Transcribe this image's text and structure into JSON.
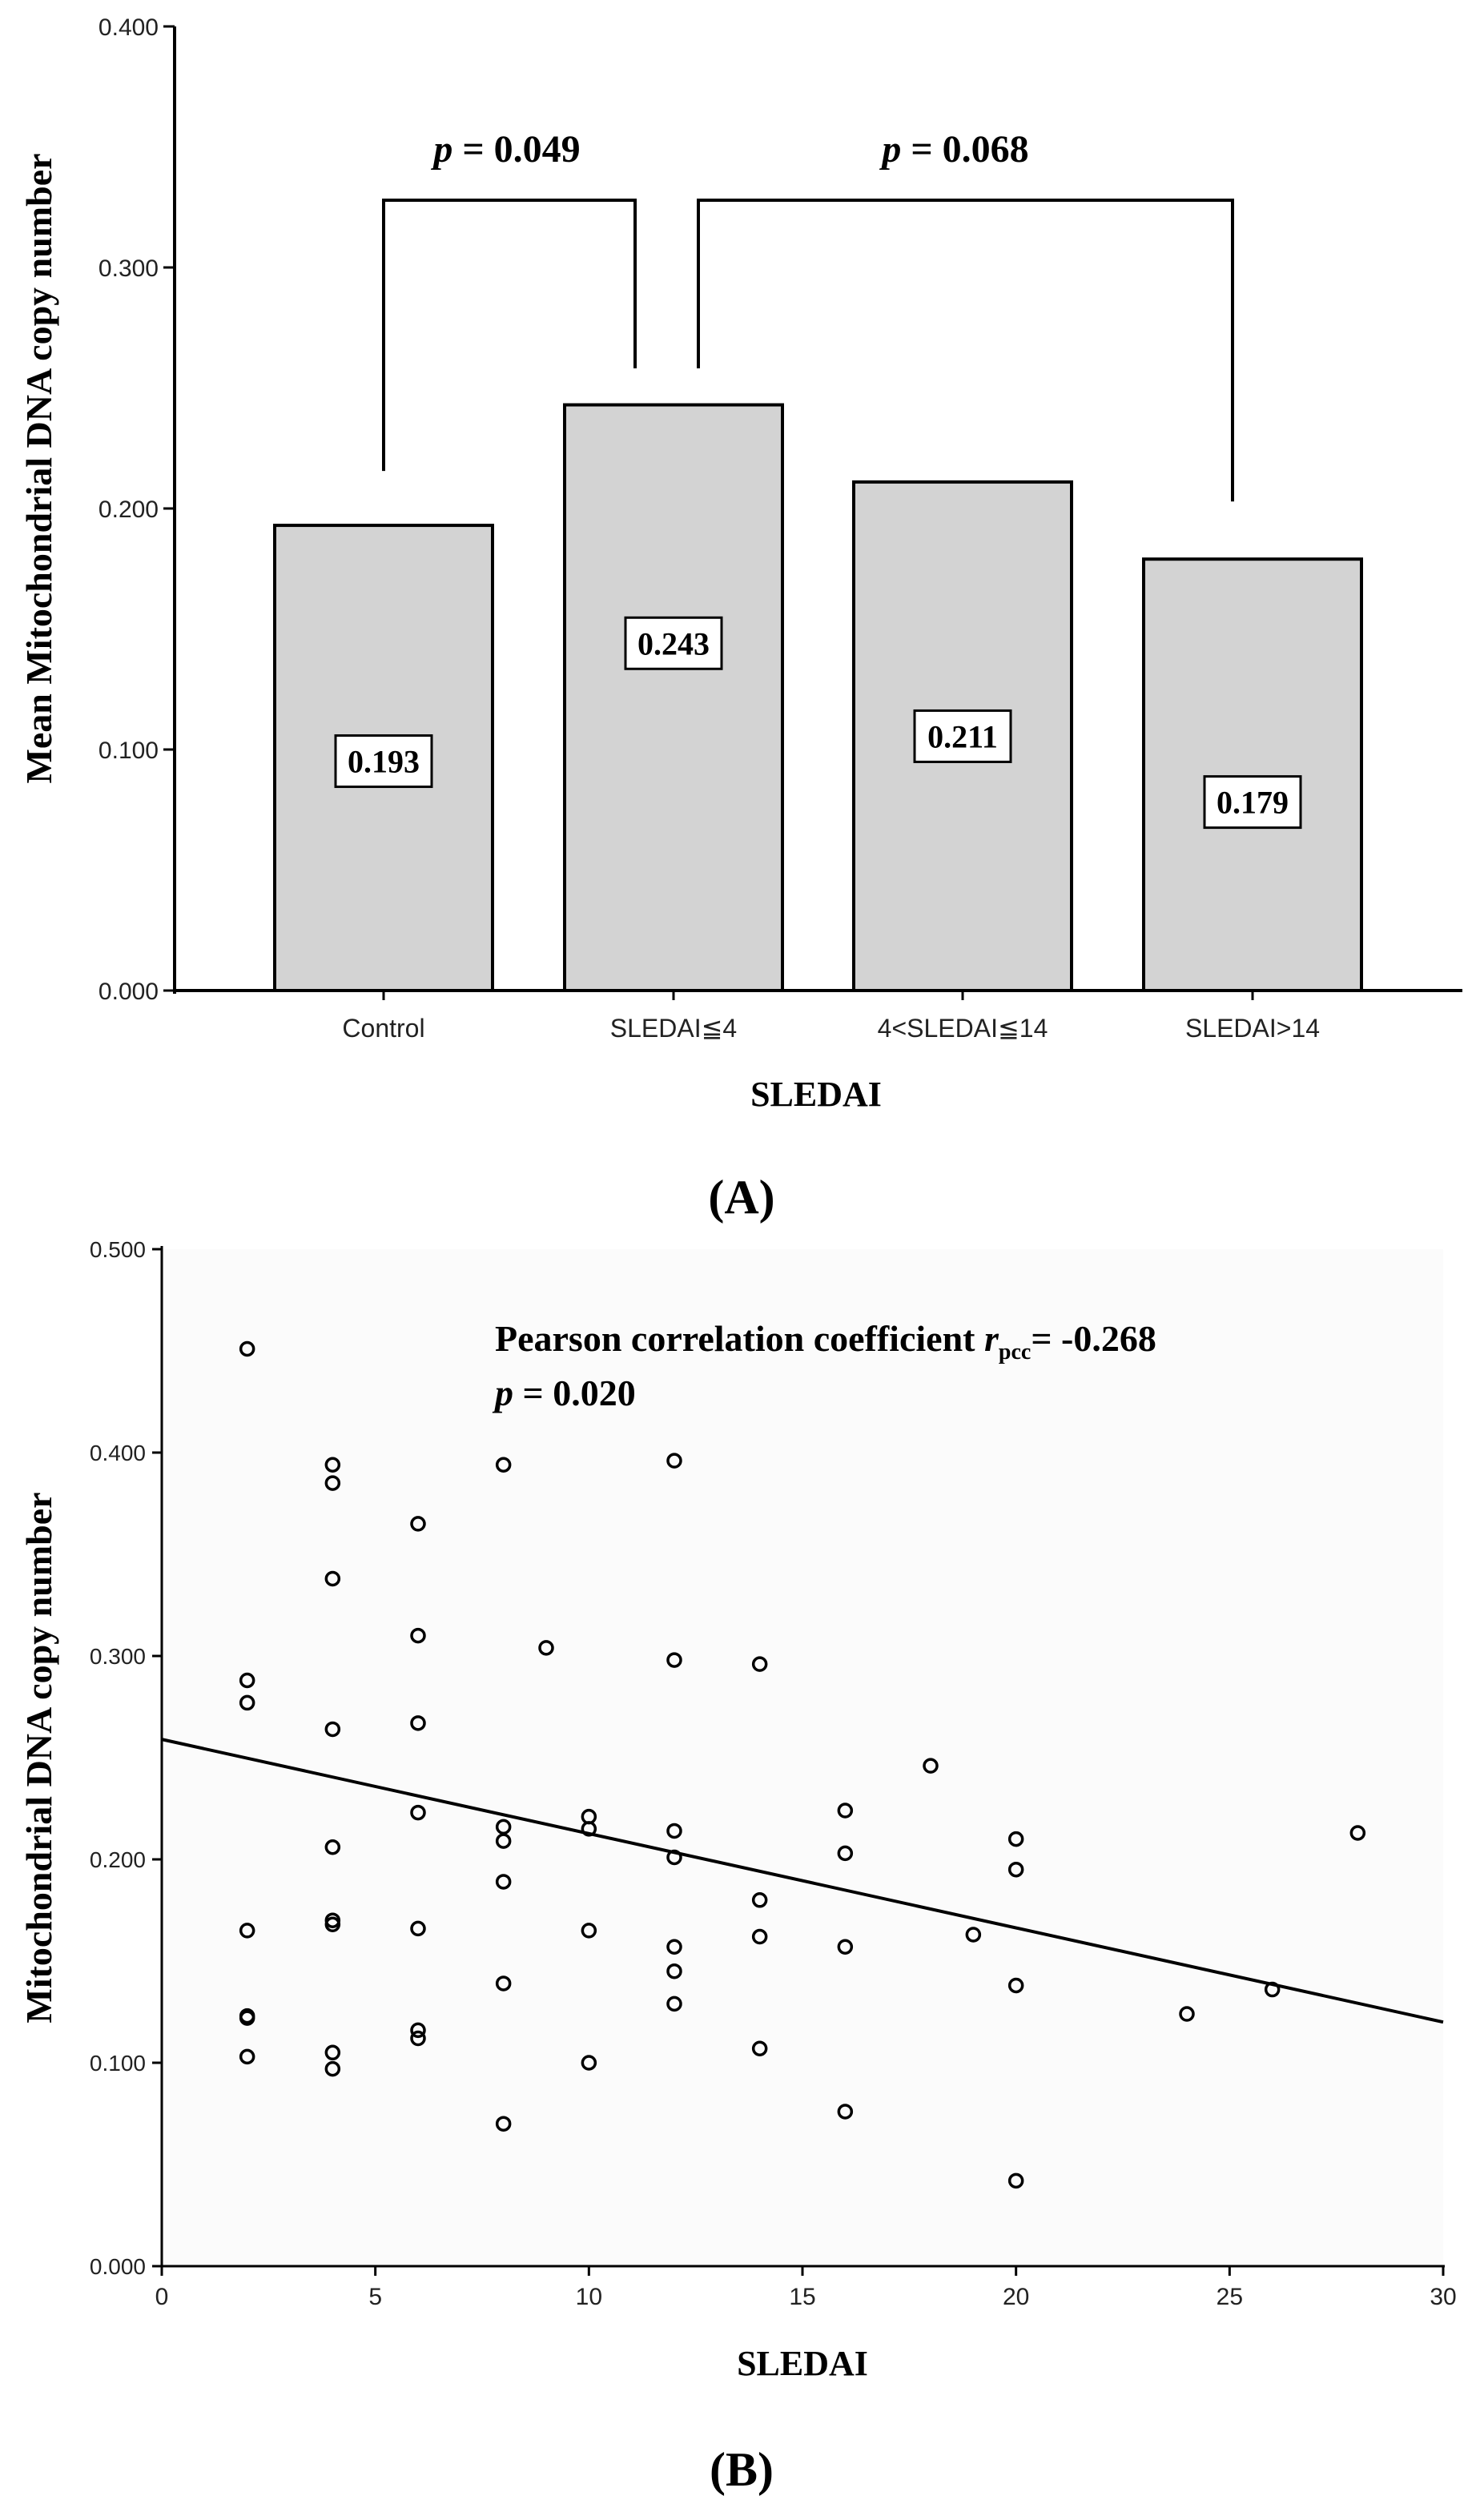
{
  "colors": {
    "bar_fill": "#d3d3d3",
    "stroke": "#000000",
    "plot_bg_b": "#fbfbfb"
  },
  "chart_data": [
    {
      "type": "bar",
      "panel_label": "(A)",
      "title": "",
      "categories": [
        "Control",
        "SLEDAI≦4",
        "4<SLEDAI≦14",
        "SLEDAI>14"
      ],
      "values": [
        0.193,
        0.243,
        0.211,
        0.179
      ],
      "value_labels": [
        "0.193",
        "0.243",
        "0.211",
        "0.179"
      ],
      "xlabel": "SLEDAI",
      "ylabel": "Mean Mitochondrial DNA copy number",
      "ylim": [
        0,
        0.4
      ],
      "yticks": [
        "0.000",
        "0.100",
        "0.200",
        "0.300",
        "0.400"
      ],
      "annotations": [
        {
          "text_italic": "p",
          "text_rest": " = 0.049",
          "from_category": 0,
          "to_category": 1
        },
        {
          "text_italic": "p",
          "text_rest": " = 0.068",
          "from_category": 1,
          "to_category": 3
        }
      ]
    },
    {
      "type": "scatter",
      "panel_label": "(B)",
      "title": "",
      "xlabel": "SLEDAI",
      "ylabel": "Mitochondrial DNA copy number",
      "xlim": [
        0,
        30
      ],
      "ylim": [
        0,
        0.5
      ],
      "xticks": [
        "0",
        "5",
        "10",
        "15",
        "20",
        "25",
        "30"
      ],
      "yticks": [
        "0.000",
        "0.100",
        "0.200",
        "0.300",
        "0.400",
        "0.500"
      ],
      "annotation_line1_prefix": "Pearson correlation coefficient ",
      "annotation_r": "r",
      "annotation_sub": "pcc",
      "annotation_line1_suffix": "= -0.268",
      "annotation_line2_italic": "p",
      "annotation_line2_rest": " = 0.020",
      "fit_line": {
        "x": [
          0,
          30
        ],
        "y": [
          0.259,
          0.12
        ]
      },
      "points": [
        {
          "x": 2,
          "y": 0.451
        },
        {
          "x": 2,
          "y": 0.288
        },
        {
          "x": 2,
          "y": 0.277
        },
        {
          "x": 2,
          "y": 0.165
        },
        {
          "x": 2,
          "y": 0.123
        },
        {
          "x": 2,
          "y": 0.122
        },
        {
          "x": 2,
          "y": 0.103
        },
        {
          "x": 4,
          "y": 0.394
        },
        {
          "x": 4,
          "y": 0.385
        },
        {
          "x": 4,
          "y": 0.338
        },
        {
          "x": 4,
          "y": 0.264
        },
        {
          "x": 4,
          "y": 0.206
        },
        {
          "x": 4,
          "y": 0.17
        },
        {
          "x": 4,
          "y": 0.168
        },
        {
          "x": 4,
          "y": 0.105
        },
        {
          "x": 4,
          "y": 0.097
        },
        {
          "x": 6,
          "y": 0.365
        },
        {
          "x": 6,
          "y": 0.31
        },
        {
          "x": 6,
          "y": 0.267
        },
        {
          "x": 6,
          "y": 0.223
        },
        {
          "x": 6,
          "y": 0.166
        },
        {
          "x": 6,
          "y": 0.116
        },
        {
          "x": 6,
          "y": 0.112
        },
        {
          "x": 8,
          "y": 0.394
        },
        {
          "x": 8,
          "y": 0.216
        },
        {
          "x": 8,
          "y": 0.209
        },
        {
          "x": 8,
          "y": 0.189
        },
        {
          "x": 8,
          "y": 0.139
        },
        {
          "x": 8,
          "y": 0.07
        },
        {
          "x": 9,
          "y": 0.304
        },
        {
          "x": 10,
          "y": 0.221
        },
        {
          "x": 10,
          "y": 0.215
        },
        {
          "x": 10,
          "y": 0.165
        },
        {
          "x": 10,
          "y": 0.1
        },
        {
          "x": 12,
          "y": 0.396
        },
        {
          "x": 12,
          "y": 0.298
        },
        {
          "x": 12,
          "y": 0.214
        },
        {
          "x": 12,
          "y": 0.201
        },
        {
          "x": 12,
          "y": 0.157
        },
        {
          "x": 12,
          "y": 0.145
        },
        {
          "x": 12,
          "y": 0.129
        },
        {
          "x": 14,
          "y": 0.296
        },
        {
          "x": 14,
          "y": 0.18
        },
        {
          "x": 14,
          "y": 0.162
        },
        {
          "x": 14,
          "y": 0.107
        },
        {
          "x": 16,
          "y": 0.224
        },
        {
          "x": 16,
          "y": 0.203
        },
        {
          "x": 16,
          "y": 0.157
        },
        {
          "x": 16,
          "y": 0.076
        },
        {
          "x": 18,
          "y": 0.246
        },
        {
          "x": 19,
          "y": 0.163
        },
        {
          "x": 20,
          "y": 0.21
        },
        {
          "x": 20,
          "y": 0.195
        },
        {
          "x": 20,
          "y": 0.138
        },
        {
          "x": 20,
          "y": 0.042
        },
        {
          "x": 24,
          "y": 0.124
        },
        {
          "x": 26,
          "y": 0.136
        },
        {
          "x": 28,
          "y": 0.213
        }
      ]
    }
  ]
}
